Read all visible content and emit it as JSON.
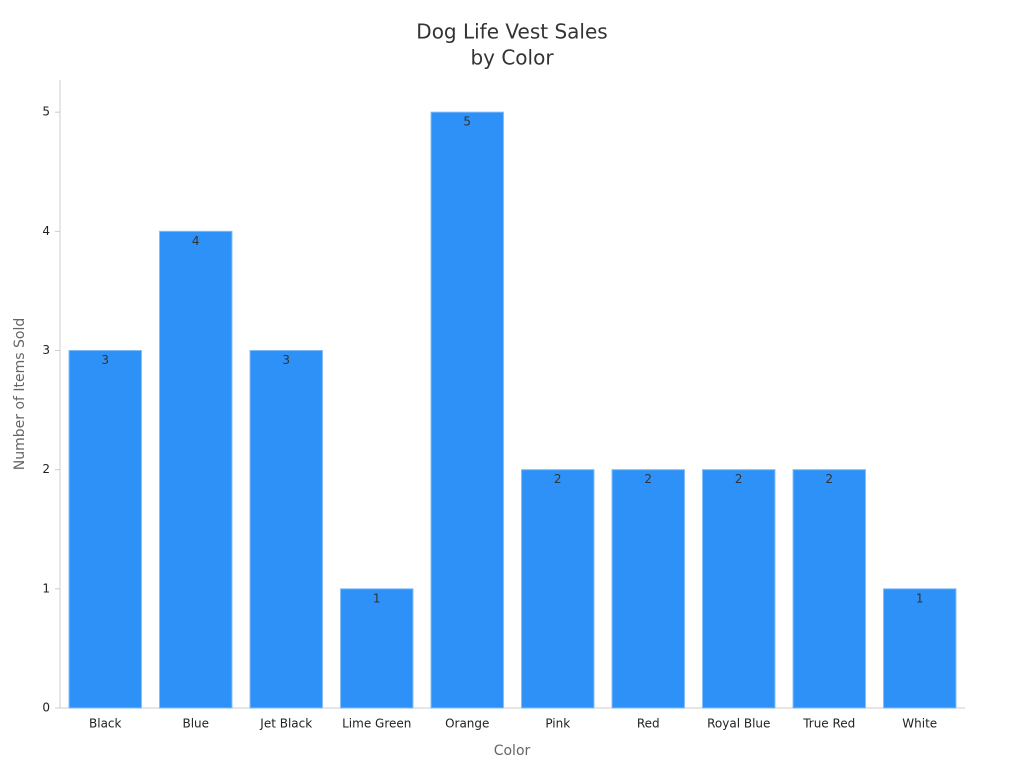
{
  "chart_data": {
    "type": "bar",
    "title": [
      "Dog Life Vest Sales",
      "by Color"
    ],
    "x_label": "Color",
    "y_label": "Number of Items Sold",
    "categories": [
      "Black",
      "Blue",
      "Jet Black",
      "Lime Green",
      "Orange",
      "Pink",
      "Red",
      "Royal Blue",
      "True Red",
      "White"
    ],
    "values": [
      3,
      4,
      3,
      1,
      5,
      2,
      2,
      2,
      2,
      1
    ],
    "color": "#2d91f7",
    "ylim": [
      0,
      5.27
    ],
    "yticks": [
      0,
      1,
      2,
      3,
      4,
      5
    ],
    "grid": false
  }
}
